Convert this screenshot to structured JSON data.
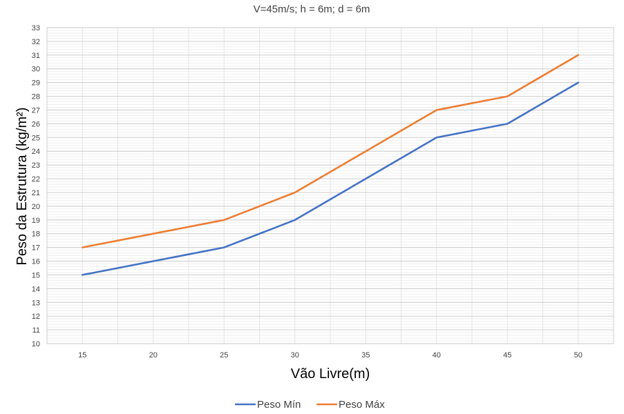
{
  "chart_data": {
    "type": "line",
    "title": "V=45m/s; h = 6m; d = 6m",
    "xlabel": "Vão Livre(m)",
    "ylabel": "Peso da Estrutura (kg/m²)",
    "x": [
      15,
      20,
      25,
      30,
      35,
      40,
      45,
      50
    ],
    "x_tick_labels": [
      "15",
      "20",
      "25",
      "30",
      "35",
      "40",
      "45",
      "50"
    ],
    "ylim": [
      10,
      33
    ],
    "y_tick_labels": [
      "10",
      "11",
      "12",
      "13",
      "14",
      "15",
      "16",
      "17",
      "18",
      "19",
      "20",
      "21",
      "22",
      "23",
      "24",
      "25",
      "26",
      "27",
      "28",
      "29",
      "30",
      "31",
      "32",
      "33"
    ],
    "grid": true,
    "legend_position": "bottom",
    "series": [
      {
        "name": "Peso Mín",
        "color": "#4472C4",
        "values": [
          15,
          16,
          17,
          19,
          22,
          25,
          26,
          29
        ]
      },
      {
        "name": "Peso Máx",
        "color": "#ED7D31",
        "values": [
          17,
          18,
          19,
          21,
          24,
          27,
          28,
          31
        ]
      }
    ]
  }
}
